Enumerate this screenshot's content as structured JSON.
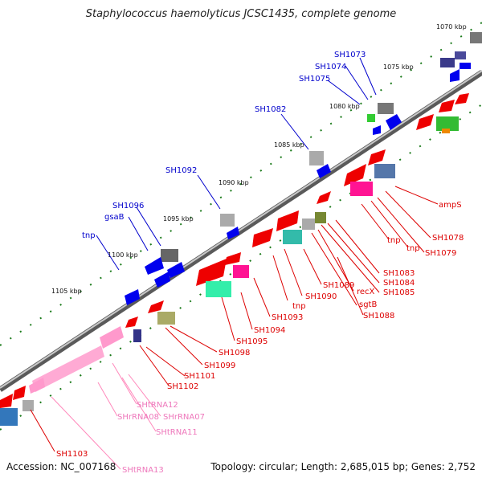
{
  "title": "Staphylococcus haemolyticus JCSC1435, complete genome",
  "footer": {
    "accession": "Accession: NC_007168",
    "summary": "Topology: circular; Length: 2,685,015 bp; Genes: 2,752"
  },
  "colors": {
    "backbone": "#8a8a8a",
    "tick": "#1a7a1a",
    "forward_gene": "#0000ee",
    "reverse_gene": "#ee0000",
    "rna": "#ff99cc",
    "forward_label": "#0000cc",
    "reverse_label": "#dd0000",
    "rna_label": "#ee77bb"
  },
  "ticks": [
    "1070 kbp",
    "1075 kbp",
    "1080 kbp",
    "1085 kbp",
    "1090 kbp",
    "1095 kbp",
    "1100 kbp",
    "1105 kbp"
  ],
  "labels": {
    "forward": [
      "SH1073",
      "SH1074",
      "SH1075",
      "SH1082",
      "SH1092",
      "SH1096",
      "gsaB",
      "tnp"
    ],
    "reverse": [
      "ampS",
      "SH1078",
      "SH1079",
      "tnp",
      "tnp",
      "SH1083",
      "SH1084",
      "SH1085",
      "recX",
      "sgtB",
      "SH1088",
      "SH1089",
      "SH1090",
      "tnp",
      "SH1093",
      "SH1094",
      "SH1095",
      "SH1098",
      "SH1099",
      "SH1101",
      "SH1102",
      "SH1103"
    ],
    "rna": [
      "SHtRNA12",
      "SHrRNA08",
      "SHrRNA07",
      "SHtRNA11",
      "SHtRNA13"
    ]
  }
}
